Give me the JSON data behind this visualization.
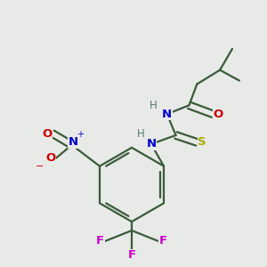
{
  "bg_color": "#e8eae8",
  "bond_color": "#3a5a3a",
  "atom_colors": {
    "N": "#0000cc",
    "O": "#cc0000",
    "S": "#aaaa00",
    "F": "#cc00cc",
    "H": "#557777",
    "C": "#3a5a3a"
  },
  "line_width": 1.6,
  "fig_size": [
    3.0,
    3.0
  ],
  "dpi": 100
}
